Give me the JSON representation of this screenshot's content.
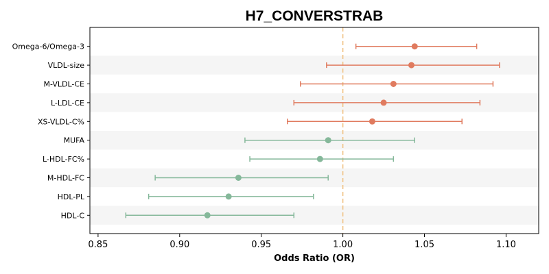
{
  "chart_data": {
    "type": "forest",
    "title": "H7_CONVERSTRAB",
    "xlabel": "Odds Ratio (OR)",
    "xlim": [
      0.845,
      1.12
    ],
    "xticks": [
      "0.85",
      "0.90",
      "0.95",
      "1.00",
      "1.05",
      "1.10"
    ],
    "reference_line": 1.0,
    "reference_color": "#f0c080",
    "colors": {
      "increased": "#e07b5f",
      "decreased": "#85b89a"
    },
    "band_color": "#f5f5f5",
    "grid": false,
    "rows": [
      {
        "label": "Omega-6/Omega-3",
        "or": 1.044,
        "lower": 1.008,
        "upper": 1.082,
        "direction": "increased"
      },
      {
        "label": "VLDL-size",
        "or": 1.042,
        "lower": 0.99,
        "upper": 1.096,
        "direction": "increased"
      },
      {
        "label": "M-VLDL-CE",
        "or": 1.031,
        "lower": 0.974,
        "upper": 1.092,
        "direction": "increased"
      },
      {
        "label": "L-LDL-CE",
        "or": 1.025,
        "lower": 0.97,
        "upper": 1.084,
        "direction": "increased"
      },
      {
        "label": "XS-VLDL-C%",
        "or": 1.018,
        "lower": 0.966,
        "upper": 1.073,
        "direction": "increased"
      },
      {
        "label": "MUFA",
        "or": 0.991,
        "lower": 0.94,
        "upper": 1.044,
        "direction": "decreased"
      },
      {
        "label": "L-HDL-FC%",
        "or": 0.986,
        "lower": 0.943,
        "upper": 1.031,
        "direction": "decreased"
      },
      {
        "label": "M-HDL-FC",
        "or": 0.936,
        "lower": 0.885,
        "upper": 0.991,
        "direction": "decreased"
      },
      {
        "label": "HDL-PL",
        "or": 0.93,
        "lower": 0.881,
        "upper": 0.982,
        "direction": "decreased"
      },
      {
        "label": "HDL-C",
        "or": 0.917,
        "lower": 0.867,
        "upper": 0.97,
        "direction": "decreased"
      }
    ]
  }
}
